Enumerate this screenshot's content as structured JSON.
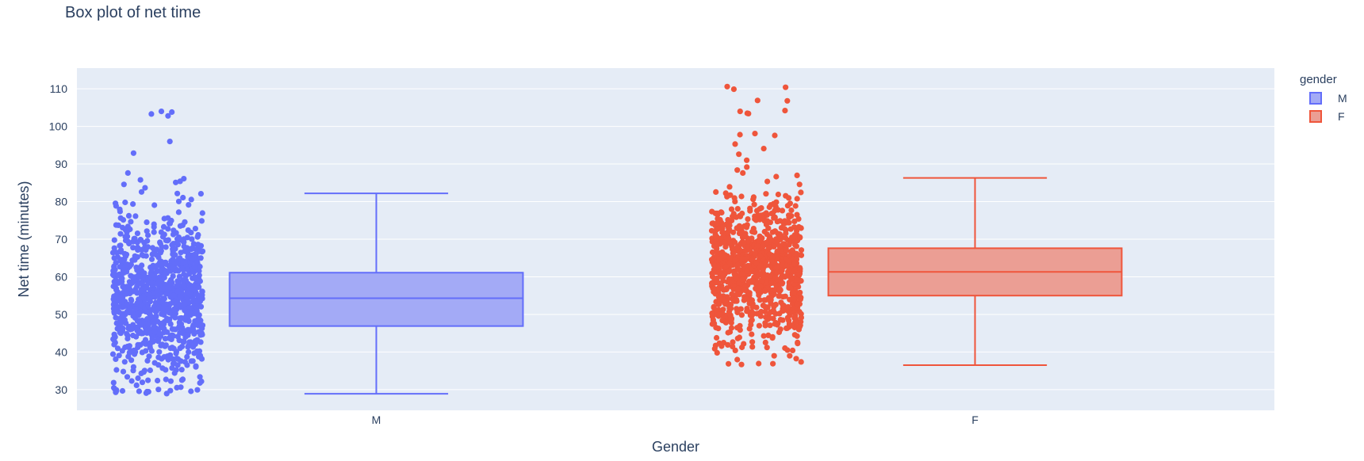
{
  "chart_data": {
    "type": "box",
    "title": "Box plot of net time",
    "xlabel": "Gender",
    "ylabel": "Net time (minutes)",
    "categories": [
      "M",
      "F"
    ],
    "yticks": [
      30,
      40,
      50,
      60,
      70,
      80,
      90,
      100,
      110
    ],
    "ylim": [
      24.5,
      115.5
    ],
    "legend": {
      "title": "gender",
      "position": "top-right"
    },
    "points": "all",
    "series": [
      {
        "name": "M",
        "category": "M",
        "color": "#636efa",
        "box_fill": "#a3aaf6",
        "min": 28.9,
        "q1": 46.9,
        "median": 54.3,
        "q3": 61.1,
        "max": 82.2,
        "outliers": [
          104.0,
          103.8,
          103.3,
          102.8,
          96.0,
          92.9,
          87.6,
          86.1,
          85.4,
          85.1
        ],
        "n_points": 1000
      },
      {
        "name": "F",
        "category": "F",
        "color": "#ef553b",
        "box_fill": "#eb9e94",
        "min": 36.5,
        "q1": 55.0,
        "median": 61.3,
        "q3": 67.6,
        "max": 86.3,
        "outliers": [
          110.6,
          110.4,
          109.9,
          106.8,
          106.9,
          104.2,
          104.0,
          103.5,
          103.4,
          98.1,
          97.8,
          97.6,
          95.3,
          94.1,
          92.6,
          91.0,
          89.2,
          88.4,
          87.6
        ],
        "n_points": 1000
      }
    ]
  },
  "colors": {
    "plot_bg": "#e5ecf6",
    "grid": "#ffffff",
    "text": "#2a3f5f"
  }
}
